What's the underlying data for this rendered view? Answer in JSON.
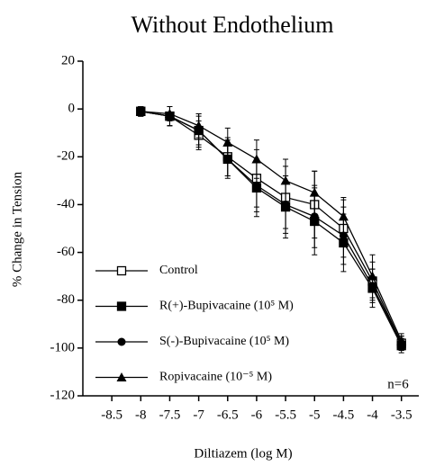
{
  "chart_data": {
    "type": "line",
    "title": "Without Endothelium",
    "x_label": "Diltiazem (log M)",
    "y_label": "% Change in Tension",
    "annotation": "n=6",
    "x": [
      -8,
      -7.5,
      -7,
      -6.5,
      -6,
      -5.5,
      -5,
      -4.5,
      -4,
      -3.5
    ],
    "series": [
      {
        "name": "Control",
        "color": "#000000",
        "marker": "open-square",
        "values": [
          -1,
          -3,
          -11,
          -20,
          -29,
          -37,
          -40,
          -50,
          -72,
          -98
        ],
        "errors": [
          2,
          4,
          6,
          8,
          12,
          13,
          14,
          12,
          8,
          3
        ]
      },
      {
        "name": "R(+)-Bupivacaine (10⁵ M)",
        "color": "#000000",
        "marker": "square",
        "values": [
          -1,
          -3,
          -9,
          -21,
          -33,
          -41,
          -47,
          -56,
          -75,
          -99
        ],
        "errors": [
          2,
          4,
          7,
          8,
          12,
          13,
          14,
          12,
          8,
          3
        ]
      },
      {
        "name": "S(-)-Bupivacaine (10⁵ M)",
        "color": "#000000",
        "marker": "circle",
        "values": [
          -1,
          -3,
          -9,
          -21,
          -32,
          -40,
          -45,
          -53,
          -74,
          -98
        ],
        "errors": [
          2,
          4,
          6,
          7,
          11,
          12,
          13,
          12,
          7,
          3
        ]
      },
      {
        "name": "Ropivacaine (10⁻⁵ M)",
        "color": "#000000",
        "marker": "triangle",
        "values": [
          -1,
          -2,
          -7,
          -14,
          -21,
          -30,
          -35,
          -45,
          -70,
          -97
        ],
        "errors": [
          2,
          3,
          5,
          6,
          8,
          9,
          9,
          8,
          9,
          3
        ]
      }
    ],
    "xlim": [
      -9,
      -3.2
    ],
    "ylim": [
      -120,
      20
    ],
    "xticks": [
      -8.5,
      -8,
      -7.5,
      -7,
      -6.5,
      -6,
      -5.5,
      -5,
      -4.5,
      -4,
      -3.5
    ],
    "yticks": [
      -120,
      -100,
      -80,
      -60,
      -40,
      -20,
      0,
      20
    ]
  }
}
